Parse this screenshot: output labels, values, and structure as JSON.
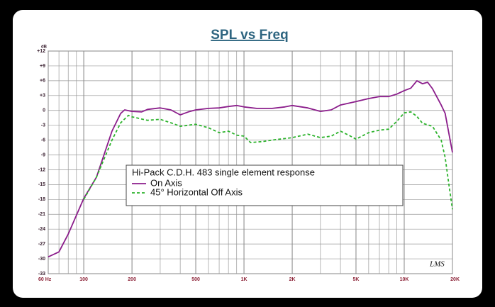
{
  "chart_data": {
    "type": "line",
    "title": "SPL vs Freq",
    "y_unit": "dB",
    "legend_title": "Hi-Pack C.D.H. 483 single element response",
    "annotation": "LMS",
    "log_x": true,
    "grid": true,
    "minor_grid": true,
    "xlim": [
      60,
      20000
    ],
    "xticks": [
      {
        "value": 60,
        "label": "60 Hz"
      },
      100,
      200,
      500,
      {
        "value": 1000,
        "label": "1K"
      },
      {
        "value": 2000,
        "label": "2K"
      },
      {
        "value": 5000,
        "label": "5K"
      },
      {
        "value": 10000,
        "label": "10K"
      },
      {
        "value": 20000,
        "label": "20K"
      }
    ],
    "ylim": [
      -33,
      12
    ],
    "yticks": [
      {
        "value": 12,
        "label": "+12"
      },
      {
        "value": 9,
        "label": "+9"
      },
      {
        "value": 6,
        "label": "+6"
      },
      {
        "value": 3,
        "label": "+3"
      },
      0,
      -3,
      -6,
      -9,
      -12,
      -15,
      -18,
      -21,
      -24,
      -27,
      -30,
      -33
    ],
    "series": [
      {
        "name": "On Axis",
        "color": "#8b1d8b",
        "dash": false,
        "x": [
          60,
          70,
          80,
          100,
          120,
          150,
          170,
          180,
          200,
          230,
          250,
          300,
          350,
          400,
          450,
          500,
          600,
          700,
          800,
          900,
          1000,
          1200,
          1500,
          1800,
          2000,
          2500,
          3000,
          3500,
          4000,
          5000,
          6000,
          7000,
          8000,
          9000,
          10000,
          11000,
          12000,
          13000,
          14000,
          15000,
          17000,
          18000,
          20000
        ],
        "values": [
          -29.6,
          -28.6,
          -25,
          -17.8,
          -13.5,
          -4.2,
          -0.6,
          0.1,
          -0.2,
          -0.3,
          0.2,
          0.5,
          0.1,
          -0.9,
          -0.3,
          0.1,
          0.4,
          0.5,
          0.8,
          1.0,
          0.7,
          0.4,
          0.4,
          0.7,
          1.0,
          0.5,
          -0.2,
          0.1,
          1.1,
          1.8,
          2.4,
          2.8,
          2.8,
          3.3,
          4.0,
          4.5,
          6.0,
          5.4,
          5.7,
          4.4,
          1.1,
          -0.6,
          -8.5
        ]
      },
      {
        "name": "45° Horizontal Off Axis",
        "color": "#2db32d",
        "dash": true,
        "x": [
          100,
          120,
          150,
          170,
          190,
          200,
          250,
          300,
          350,
          400,
          500,
          600,
          700,
          800,
          900,
          1000,
          1100,
          1300,
          1500,
          2000,
          2500,
          3000,
          3500,
          4000,
          4500,
          5000,
          6000,
          7000,
          8000,
          9000,
          10000,
          11000,
          12000,
          13000,
          15000,
          17000,
          18000,
          19000,
          20000
        ],
        "values": [
          -18,
          -13.5,
          -6,
          -2.5,
          -1.0,
          -1.3,
          -2.0,
          -1.8,
          -2.5,
          -3.2,
          -2.8,
          -3.5,
          -4.5,
          -4.2,
          -5,
          -5.2,
          -6.5,
          -6.3,
          -6,
          -5.5,
          -4.8,
          -5.5,
          -5.2,
          -4.2,
          -5.0,
          -5.8,
          -4.5,
          -4,
          -3.8,
          -2.2,
          -0.5,
          -0.3,
          -1.2,
          -2.6,
          -3.2,
          -6,
          -9.5,
          -15,
          -20
        ]
      }
    ]
  }
}
